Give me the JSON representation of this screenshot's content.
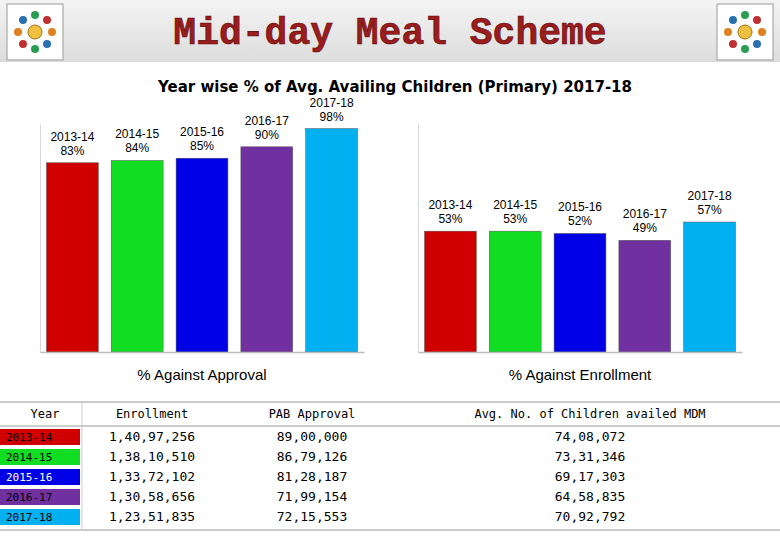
{
  "title": "Mid-day Meal Scheme",
  "subtitle": "Year wise % of Avg. Availing Children (Primary)  2017-18",
  "chart_data": [
    {
      "type": "bar",
      "xlabel": "% Against Approval",
      "categories": [
        "2013-14",
        "2014-15",
        "2015-16",
        "2016-17",
        "2017-18"
      ],
      "values": [
        83,
        84,
        85,
        90,
        98
      ],
      "value_labels": [
        "83%",
        "84%",
        "85%",
        "90%",
        "98%"
      ],
      "colors": [
        "#d00000",
        "#11dd22",
        "#0000e6",
        "#7030a0",
        "#00b0f0"
      ],
      "ylim": [
        0,
        100
      ],
      "tick_labels": false,
      "data_labels": true
    },
    {
      "type": "bar",
      "xlabel": "% Against Enrollment",
      "categories": [
        "2013-14",
        "2014-15",
        "2015-16",
        "2016-17",
        "2017-18"
      ],
      "values": [
        53,
        53,
        52,
        49,
        57
      ],
      "value_labels": [
        "53%",
        "53%",
        "52%",
        "49%",
        "57%"
      ],
      "colors": [
        "#d00000",
        "#11dd22",
        "#0000e6",
        "#7030a0",
        "#00b0f0"
      ],
      "ylim": [
        0,
        100
      ],
      "tick_labels": false,
      "data_labels": true
    }
  ],
  "table": {
    "columns": [
      "Year",
      "Enrollment",
      "PAB Approval",
      "Avg. No. of Children availed MDM"
    ],
    "rows": [
      [
        "2013-14",
        "1,40,97,256",
        "89,00,000",
        "74,08,072"
      ],
      [
        "2014-15",
        "1,38,10,510",
        "86,79,126",
        "73,31,346"
      ],
      [
        "2015-16",
        "1,33,72,102",
        "81,28,187",
        "69,17,303"
      ],
      [
        "2016-17",
        "1,30,58,656",
        "71,99,154",
        "64,58,835"
      ],
      [
        "2017-18",
        "1,23,51,835",
        "72,15,553",
        "70,92,792"
      ]
    ]
  }
}
